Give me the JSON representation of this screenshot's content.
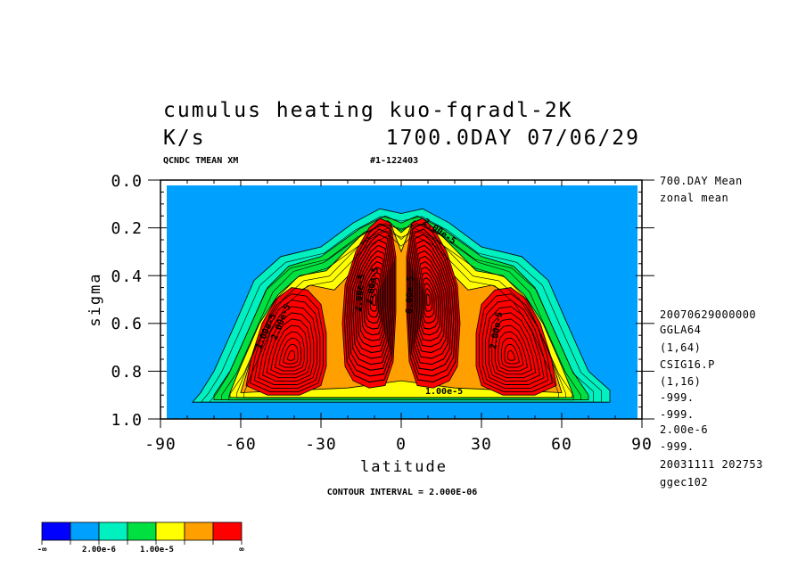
{
  "header": {
    "title_line1": "cumulus heating  kuo-fqradl-2K",
    "title_line2_unit": "K/s",
    "title_line2_time": "1700.0DAY 07/06/29",
    "sub_left": "QCNDC TMEAN XM",
    "sub_right": "#1-122403"
  },
  "side_notes": {
    "top": [
      "700.DAY Mean",
      "zonal mean"
    ],
    "bottom": [
      "20070629000000",
      "GGLA64",
      "(1,64)",
      "CSIG16.P",
      "(1,16)",
      "-999.",
      "-999.",
      "2.00e-6",
      "-999.",
      "20031111 202753",
      "ggec102"
    ]
  },
  "footer": {
    "contour_interval": "CONTOUR INTERVAL = 2.000E-06"
  },
  "colorbar": {
    "colors": [
      "#0000ff",
      "#00a0ff",
      "#00f0c0",
      "#00e040",
      "#ffff00",
      "#ffa000",
      "#ff0000"
    ],
    "labels": [
      "-∞",
      "2.00e-6",
      "1.00e-5",
      "∞"
    ]
  },
  "contour_labels": [
    "1.00e-5",
    "2.00e-5",
    "2.00e-5",
    "2.00e-5",
    "6.00e-5",
    "2.00e-5",
    "2.00e-5",
    "1.00e-5"
  ],
  "chart_data": {
    "type": "heatmap",
    "title": "cumulus heating  kuo-fqradl-2K",
    "units": "K/s",
    "xlabel": "latitude",
    "ylabel": "sigma",
    "xlim": [
      -90,
      90
    ],
    "ylim": [
      1.0,
      0.0
    ],
    "x_ticks": [
      -90,
      -60,
      -30,
      0,
      30,
      60,
      90
    ],
    "y_ticks": [
      0.0,
      0.2,
      0.4,
      0.6,
      0.8,
      1.0
    ],
    "contour_interval": 2e-06,
    "color_levels": [
      2e-06,
      1e-05
    ],
    "regions": [
      {
        "color": "#00f0c0",
        "level": "0-2e-6",
        "points": [
          [
            -75,
            0.89
          ],
          [
            -70,
            0.8
          ],
          [
            -62,
            0.6
          ],
          [
            -55,
            0.42
          ],
          [
            -45,
            0.32
          ],
          [
            -30,
            0.28
          ],
          [
            -18,
            0.18
          ],
          [
            -8,
            0.12
          ],
          [
            0,
            0.14
          ],
          [
            8,
            0.12
          ],
          [
            18,
            0.18
          ],
          [
            30,
            0.28
          ],
          [
            45,
            0.32
          ],
          [
            55,
            0.42
          ],
          [
            62,
            0.6
          ],
          [
            70,
            0.8
          ],
          [
            78,
            0.88
          ],
          [
            78,
            0.93
          ],
          [
            -78,
            0.93
          ]
        ]
      },
      {
        "color": "#00e040",
        "level": "2e-6-1e-5",
        "points": [
          [
            -70,
            0.9
          ],
          [
            -64,
            0.8
          ],
          [
            -56,
            0.6
          ],
          [
            -50,
            0.45
          ],
          [
            -42,
            0.36
          ],
          [
            -30,
            0.32
          ],
          [
            -15,
            0.2
          ],
          [
            -6,
            0.15
          ],
          [
            0,
            0.18
          ],
          [
            6,
            0.15
          ],
          [
            15,
            0.2
          ],
          [
            30,
            0.32
          ],
          [
            42,
            0.36
          ],
          [
            50,
            0.45
          ],
          [
            56,
            0.6
          ],
          [
            64,
            0.8
          ],
          [
            70,
            0.9
          ],
          [
            70,
            0.92
          ],
          [
            -70,
            0.92
          ]
        ]
      },
      {
        "color": "#ffff00",
        "level": "1e-5-1.4e-5",
        "points": [
          [
            -64,
            0.89
          ],
          [
            -60,
            0.78
          ],
          [
            -53,
            0.6
          ],
          [
            -46,
            0.48
          ],
          [
            -38,
            0.4
          ],
          [
            -28,
            0.38
          ],
          [
            -14,
            0.22
          ],
          [
            -5,
            0.17
          ],
          [
            0,
            0.22
          ],
          [
            5,
            0.17
          ],
          [
            14,
            0.22
          ],
          [
            28,
            0.38
          ],
          [
            38,
            0.4
          ],
          [
            46,
            0.48
          ],
          [
            53,
            0.6
          ],
          [
            60,
            0.78
          ],
          [
            64,
            0.89
          ],
          [
            64,
            0.91
          ],
          [
            -64,
            0.91
          ]
        ]
      },
      {
        "color": "#ffa000",
        "level": "1.4e-5-2e-5",
        "points": [
          [
            -60,
            0.89
          ],
          [
            -57,
            0.78
          ],
          [
            -50,
            0.6
          ],
          [
            -44,
            0.5
          ],
          [
            -34,
            0.44
          ],
          [
            -25,
            0.46
          ],
          [
            -18,
            0.38
          ],
          [
            -12,
            0.24
          ],
          [
            -4,
            0.18
          ],
          [
            0,
            0.3
          ],
          [
            4,
            0.18
          ],
          [
            12,
            0.24
          ],
          [
            18,
            0.38
          ],
          [
            25,
            0.46
          ],
          [
            34,
            0.44
          ],
          [
            44,
            0.5
          ],
          [
            50,
            0.6
          ],
          [
            57,
            0.78
          ],
          [
            60,
            0.89
          ],
          [
            40,
            0.88
          ],
          [
            20,
            0.87
          ],
          [
            0,
            0.84
          ],
          [
            -20,
            0.87
          ],
          [
            -40,
            0.88
          ]
        ]
      },
      {
        "color": "#ff0000",
        "level": ">2e-5 (outer west)",
        "points": [
          [
            -58,
            0.86
          ],
          [
            -56,
            0.74
          ],
          [
            -52,
            0.6
          ],
          [
            -47,
            0.5
          ],
          [
            -41,
            0.45
          ],
          [
            -35,
            0.46
          ],
          [
            -30,
            0.52
          ],
          [
            -28,
            0.64
          ],
          [
            -28,
            0.78
          ],
          [
            -30,
            0.86
          ],
          [
            -38,
            0.9
          ],
          [
            -50,
            0.9
          ]
        ]
      },
      {
        "color": "#ff0000",
        "level": ">2e-5 (inner west)",
        "points": [
          [
            -21,
            0.78
          ],
          [
            -22,
            0.6
          ],
          [
            -21,
            0.44
          ],
          [
            -17,
            0.3
          ],
          [
            -12,
            0.2
          ],
          [
            -8,
            0.16
          ],
          [
            -4,
            0.18
          ],
          [
            -2,
            0.32
          ],
          [
            -2,
            0.55
          ],
          [
            -3,
            0.76
          ],
          [
            -6,
            0.86
          ],
          [
            -12,
            0.87
          ],
          [
            -18,
            0.84
          ]
        ]
      },
      {
        "color": "#ff0000",
        "level": ">2e-5 (inner east)",
        "points": [
          [
            21,
            0.78
          ],
          [
            22,
            0.6
          ],
          [
            21,
            0.44
          ],
          [
            17,
            0.3
          ],
          [
            12,
            0.2
          ],
          [
            8,
            0.16
          ],
          [
            4,
            0.18
          ],
          [
            2,
            0.32
          ],
          [
            2,
            0.55
          ],
          [
            3,
            0.76
          ],
          [
            6,
            0.86
          ],
          [
            12,
            0.87
          ],
          [
            18,
            0.84
          ]
        ]
      },
      {
        "color": "#ff0000",
        "level": ">2e-5 (outer east)",
        "points": [
          [
            58,
            0.86
          ],
          [
            56,
            0.74
          ],
          [
            52,
            0.6
          ],
          [
            47,
            0.5
          ],
          [
            41,
            0.45
          ],
          [
            35,
            0.46
          ],
          [
            30,
            0.52
          ],
          [
            28,
            0.64
          ],
          [
            28,
            0.78
          ],
          [
            30,
            0.86
          ],
          [
            38,
            0.9
          ],
          [
            50,
            0.9
          ]
        ]
      }
    ],
    "maxima": [
      {
        "lat": -41,
        "sigma": 0.74,
        "peak_level": "~4e-5"
      },
      {
        "lat": -10,
        "sigma": 0.5,
        "peak_level": "~6e-5"
      },
      {
        "lat": 10,
        "sigma": 0.5,
        "peak_level": "~6e-5"
      },
      {
        "lat": 41,
        "sigma": 0.74,
        "peak_level": "~4e-5"
      }
    ]
  }
}
